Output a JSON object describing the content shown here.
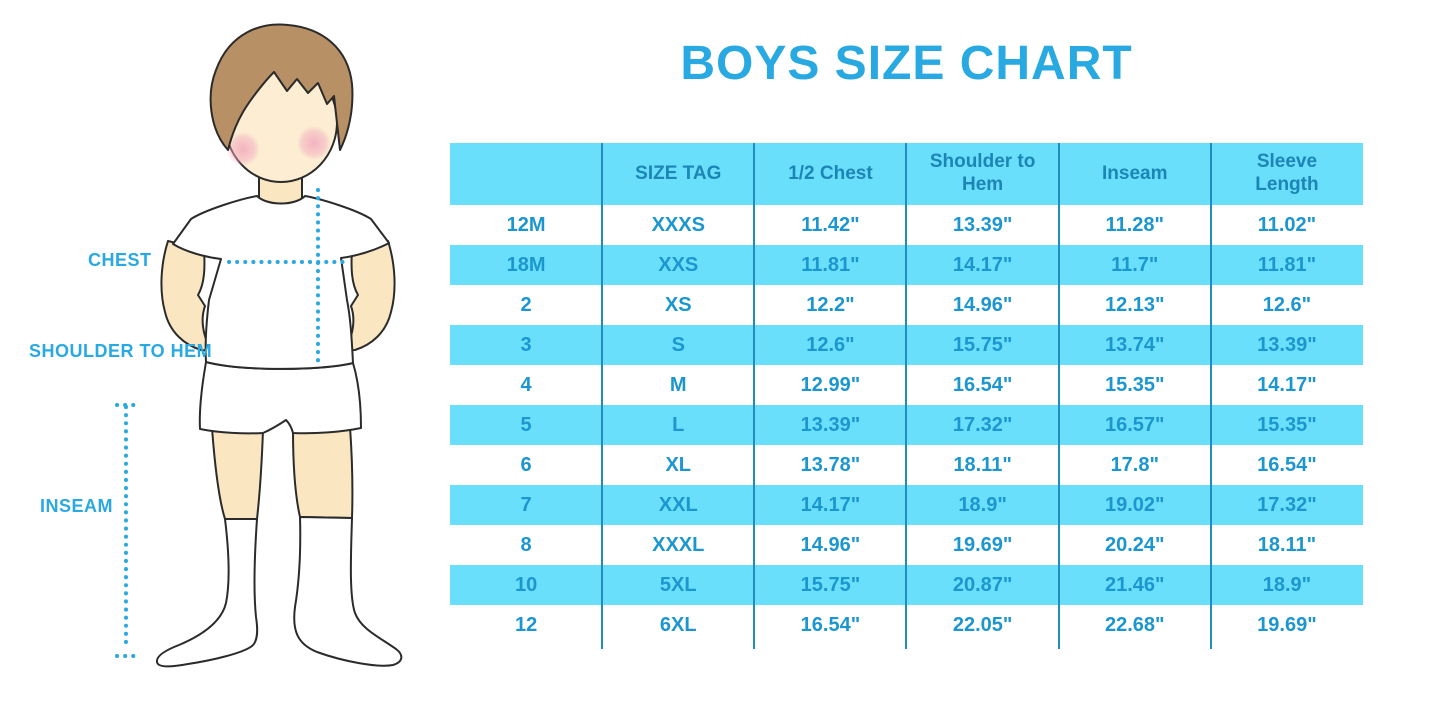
{
  "title": "BOYS SIZE CHART",
  "figure": {
    "labels": {
      "chest": "CHEST",
      "shoulder_to_hem": "SHOULDER TO HEM",
      "inseam": "INSEAM"
    }
  },
  "chart_data": {
    "type": "table",
    "title": "BOYS SIZE CHART",
    "columns": [
      "",
      "SIZE TAG",
      "1/2 Chest",
      "Shoulder to Hem",
      "Inseam",
      "Sleeve Length"
    ],
    "rows": [
      [
        "12M",
        "XXXS",
        "11.42\"",
        "13.39\"",
        "11.28\"",
        "11.02\""
      ],
      [
        "18M",
        "XXS",
        "11.81\"",
        "14.17\"",
        "11.7\"",
        "11.81\""
      ],
      [
        "2",
        "XS",
        "12.2\"",
        "14.96\"",
        "12.13\"",
        "12.6\""
      ],
      [
        "3",
        "S",
        "12.6\"",
        "15.75\"",
        "13.74\"",
        "13.39\""
      ],
      [
        "4",
        "M",
        "12.99\"",
        "16.54\"",
        "15.35\"",
        "14.17\""
      ],
      [
        "5",
        "L",
        "13.39\"",
        "17.32\"",
        "16.57\"",
        "15.35\""
      ],
      [
        "6",
        "XL",
        "13.78\"",
        "18.11\"",
        "17.8\"",
        "16.54\""
      ],
      [
        "7",
        "XXL",
        "14.17\"",
        "18.9\"",
        "19.02\"",
        "17.32\""
      ],
      [
        "8",
        "XXXL",
        "14.96\"",
        "19.69\"",
        "20.24\"",
        "18.11\""
      ],
      [
        "10",
        "5XL",
        "15.75\"",
        "20.87\"",
        "21.46\"",
        "18.9\""
      ],
      [
        "12",
        "6XL",
        "16.54\"",
        "22.05\"",
        "22.68\"",
        "19.69\""
      ]
    ],
    "layout": {
      "striped_rows": true,
      "first_data_row_background": "white",
      "grid": "vertical-only"
    }
  },
  "colors": {
    "accent": "#29a9e1",
    "stripe": "#69dffb",
    "separator": "#1f8dc0",
    "header_text": "#1d85b6",
    "data_text": "#1c96cf",
    "skin": "#fae7c1",
    "face": "#fcedd3",
    "hair": "#b89065",
    "cheek": "#f2a9bd",
    "outline": "#2b2b2b"
  }
}
